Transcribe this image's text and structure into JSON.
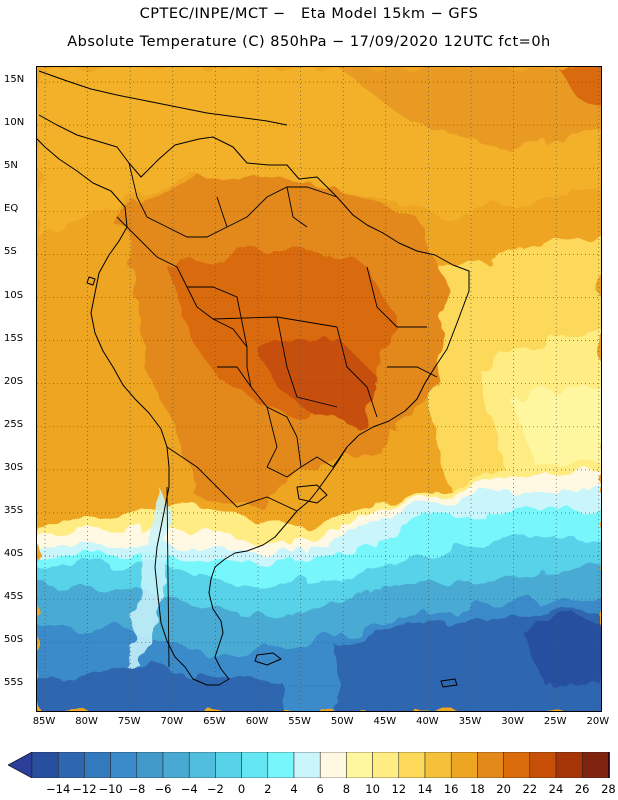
{
  "header": {
    "line1": "CPTEC/INPE/MCT −   Eta Model 15km − GFS",
    "line2": "Absolute Temperature (C) 850hPa − 17/09/2020 12UTC fct=0h"
  },
  "map": {
    "lat_labels": [
      "15N",
      "10N",
      "5N",
      "EQ",
      "5S",
      "10S",
      "15S",
      "20S",
      "25S",
      "30S",
      "35S",
      "40S",
      "45S",
      "50S",
      "55S"
    ],
    "lon_labels": [
      "85W",
      "80W",
      "75W",
      "70W",
      "65W",
      "60W",
      "55W",
      "50W",
      "45W",
      "40W",
      "35W",
      "30W",
      "25W",
      "20W"
    ]
  },
  "colorbar": {
    "labels": [
      "−14",
      "−12",
      "−10",
      "−8",
      "−6",
      "−4",
      "−2",
      "0",
      "2",
      "4",
      "6",
      "8",
      "10",
      "12",
      "14",
      "16",
      "18",
      "20",
      "22",
      "24",
      "26",
      "28"
    ],
    "colors": [
      "#284f9f",
      "#2f66b0",
      "#3478be",
      "#3b8ac9",
      "#4099c9",
      "#48aad3",
      "#52bede",
      "#58d2e8",
      "#64e7f2",
      "#77f7fb",
      "#caf5fb",
      "#fff8e2",
      "#fff7a0",
      "#ffec82",
      "#fcd95a",
      "#f5c13a",
      "#eea522",
      "#e3891a",
      "#d96b0c",
      "#c74f08",
      "#a63608",
      "#7f220e"
    ],
    "under_color": "#2b3f98",
    "over_color": "#800a1c"
  }
}
